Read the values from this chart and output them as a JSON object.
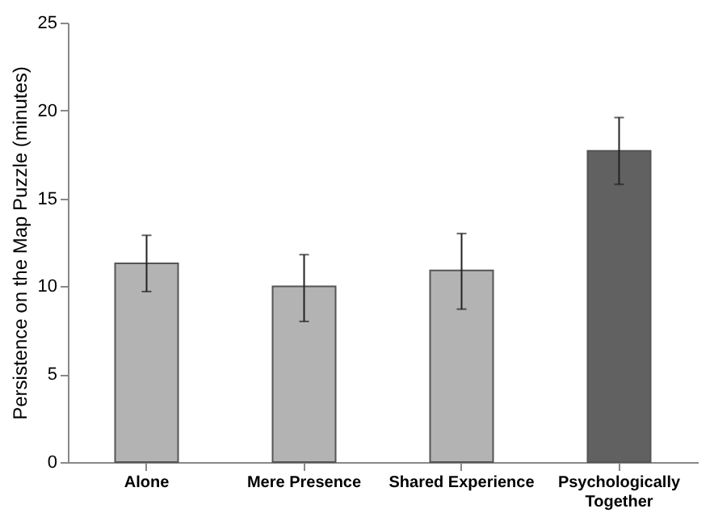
{
  "chart_data": {
    "type": "bar",
    "ylabel": "Persistence on the Map Puzzle (minutes)",
    "categories": [
      "Alone",
      "Mere Presence",
      "Shared Experience",
      "Psychologically Together"
    ],
    "values": [
      11.3,
      10.0,
      10.9,
      17.7
    ],
    "errors": [
      [
        9.7,
        12.9
      ],
      [
        8.0,
        11.8
      ],
      [
        8.7,
        13.0
      ],
      [
        15.8,
        19.6
      ]
    ],
    "colors": [
      "#b3b3b3",
      "#b3b3b3",
      "#b3b3b3",
      "#616161"
    ],
    "ylim": [
      0,
      25
    ],
    "yticks": [
      0,
      5,
      10,
      15,
      20,
      25
    ],
    "grid": false
  }
}
